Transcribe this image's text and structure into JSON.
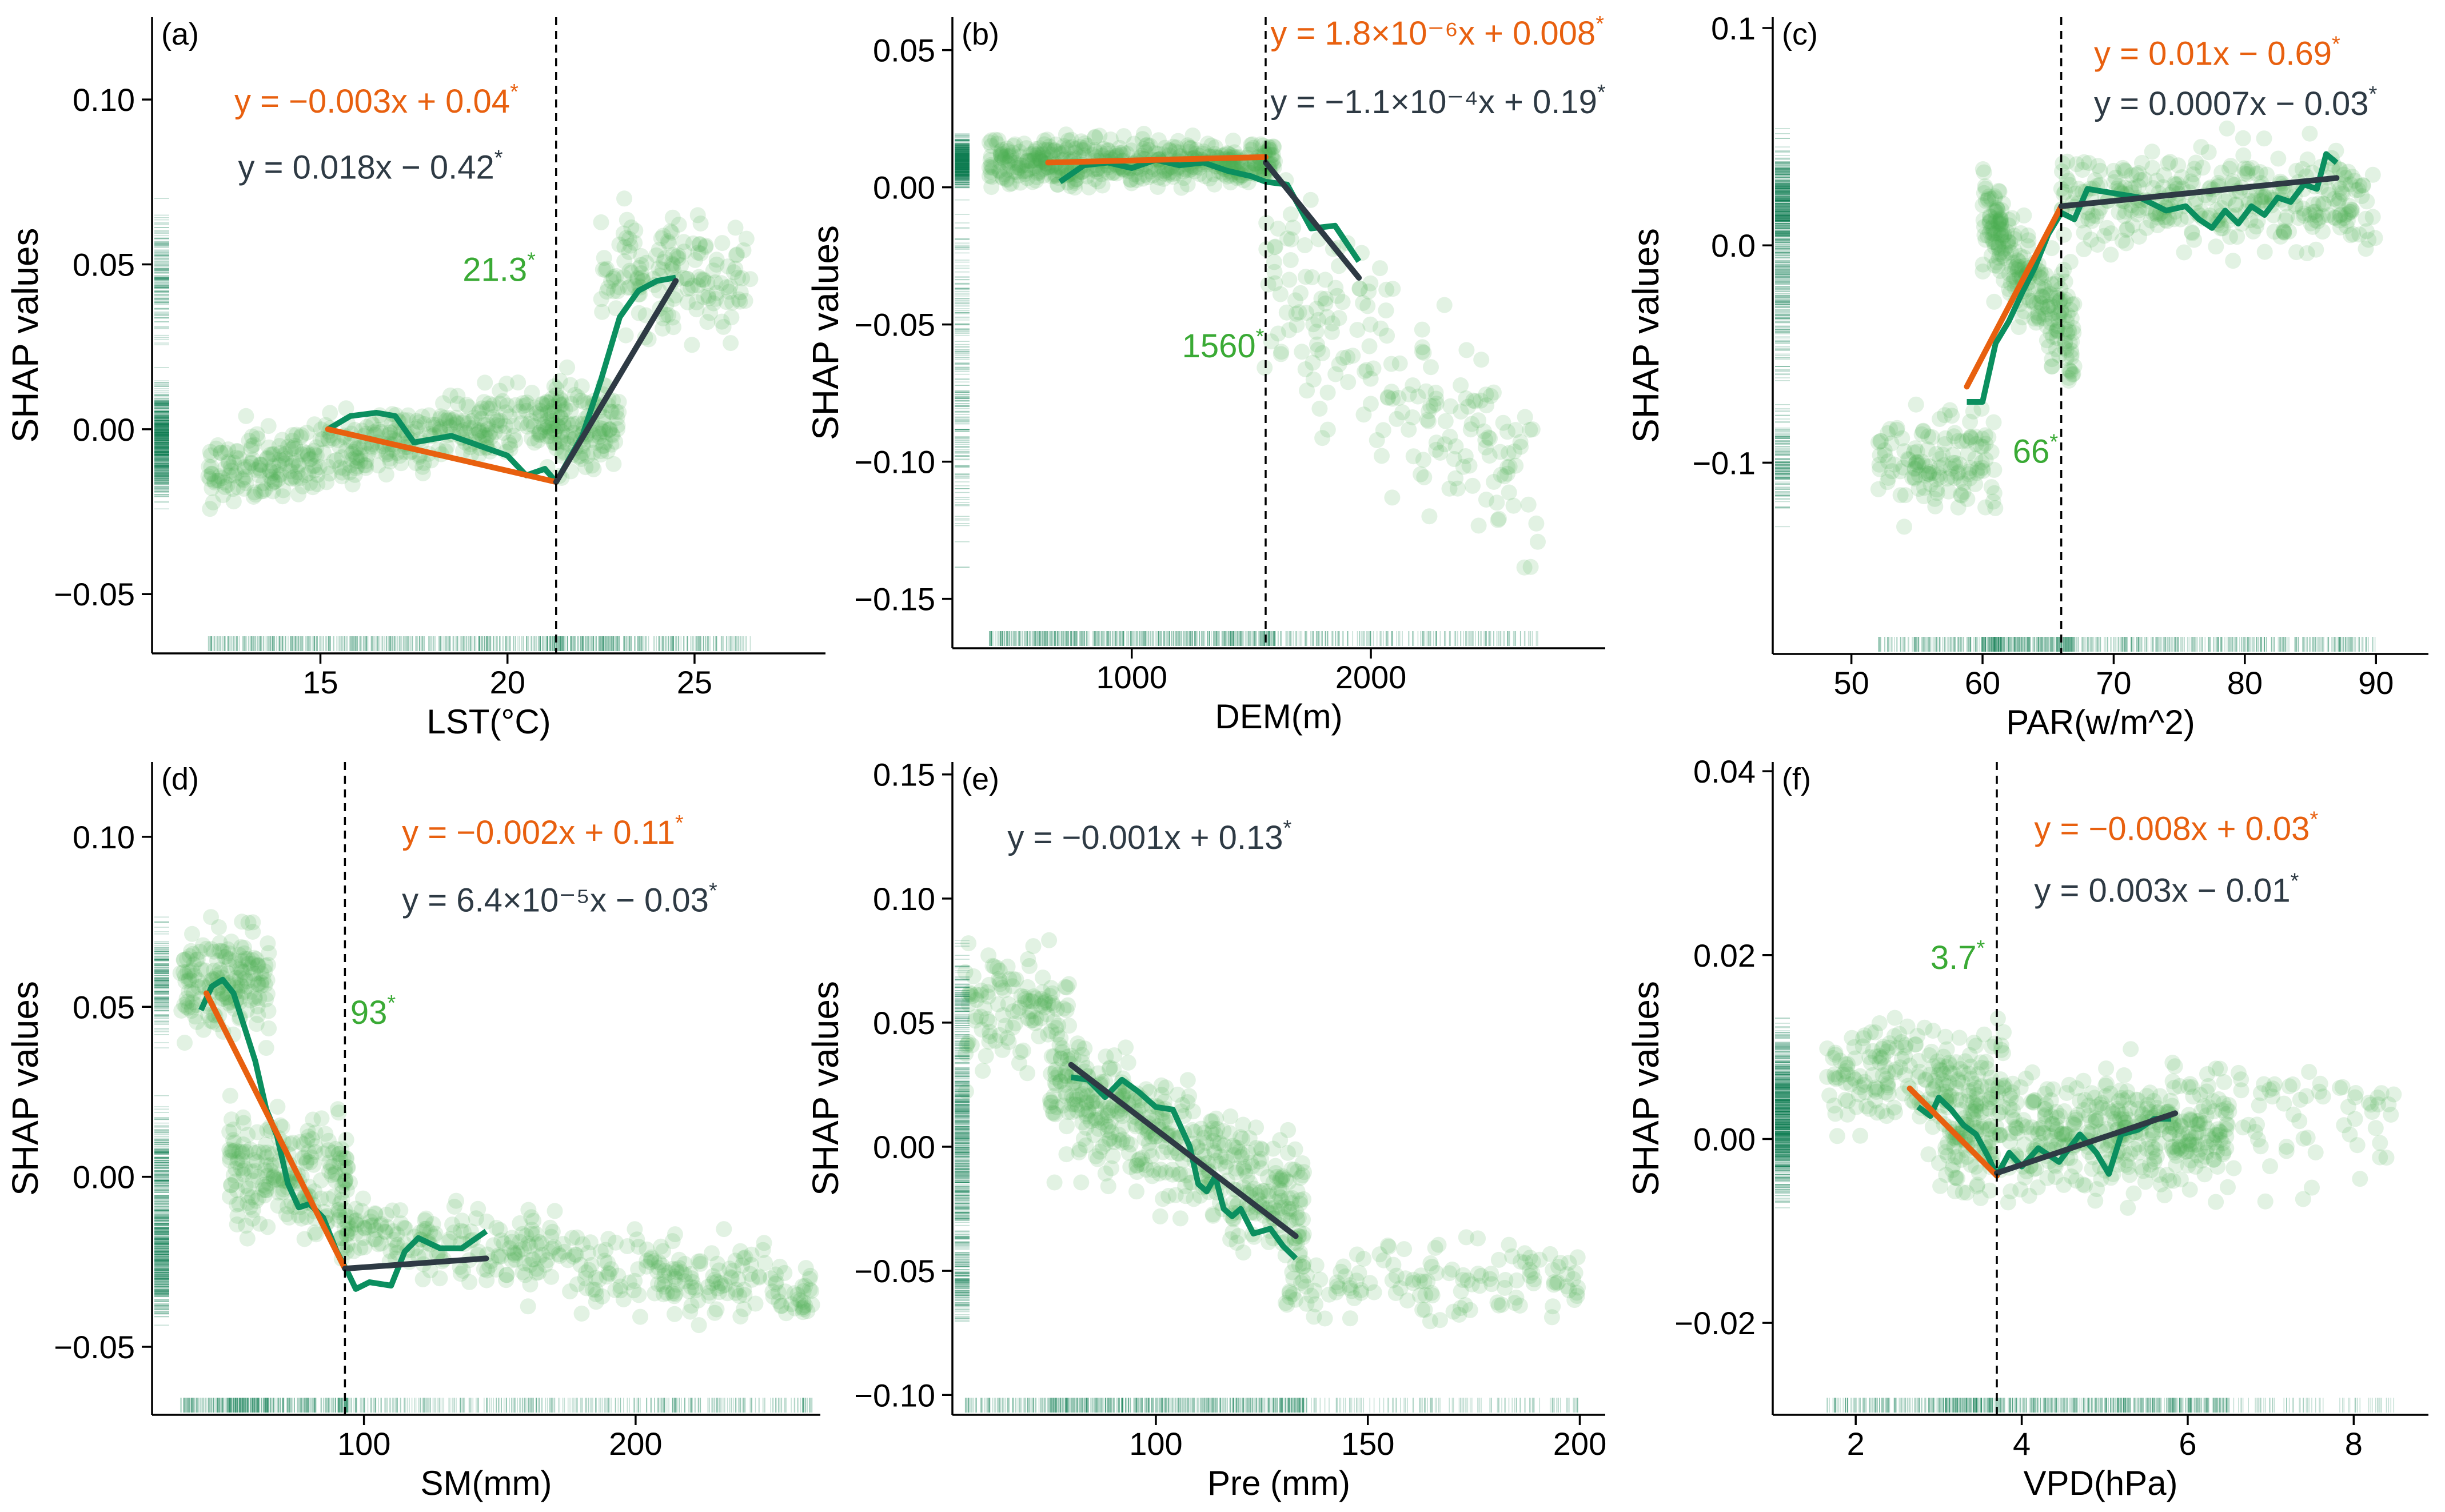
{
  "figure": {
    "background": "#ffffff",
    "colors": {
      "points": "#4caf50",
      "loess": "#0b8f5f",
      "fit_left": "#e8600f",
      "fit_right": "#2e3a44",
      "threshold_text": "#3aaa35",
      "rug": "#0b7a50",
      "axis": "#000000"
    }
  },
  "chart_data": [
    {
      "panel": "(a)",
      "type": "scatter",
      "xlabel": "LST(°C)",
      "ylabel": "SHAP values",
      "xlim": [
        10.5,
        28.5
      ],
      "ylim": [
        -0.068,
        0.125
      ],
      "xticks": [
        15,
        20,
        25
      ],
      "xtick_labels": [
        "15",
        "20",
        "25"
      ],
      "yticks": [
        -0.05,
        0,
        0.05,
        0.1
      ],
      "ytick_labels": [
        "−0.05",
        "0.00",
        "0.05",
        "0.10"
      ],
      "threshold": 21.3,
      "threshold_label": "21.3",
      "threshold_label_pos": [
        18.8,
        0.045
      ],
      "eq_left": "y = −0.003x + 0.04",
      "eq_left_pos": [
        12.7,
        0.096
      ],
      "eq_right": "y = 0.018x − 0.42",
      "eq_right_pos": [
        12.8,
        0.076
      ],
      "fit_left": [
        [
          15.2,
          0.0
        ],
        [
          21.3,
          -0.016
        ]
      ],
      "fit_right": [
        [
          21.3,
          -0.016
        ],
        [
          24.5,
          0.045
        ]
      ],
      "loess": [
        [
          15.2,
          0.0
        ],
        [
          15.8,
          0.004
        ],
        [
          16.5,
          0.005
        ],
        [
          17.0,
          0.004
        ],
        [
          17.5,
          -0.004
        ],
        [
          18.0,
          -0.003
        ],
        [
          18.5,
          -0.002
        ],
        [
          19.0,
          -0.004
        ],
        [
          19.5,
          -0.006
        ],
        [
          20.0,
          -0.008
        ],
        [
          20.5,
          -0.014
        ],
        [
          21.0,
          -0.012
        ],
        [
          21.3,
          -0.016
        ],
        [
          22.0,
          -0.002
        ],
        [
          22.5,
          0.015
        ],
        [
          23.0,
          0.034
        ],
        [
          23.5,
          0.042
        ],
        [
          24.0,
          0.045
        ],
        [
          24.5,
          0.046
        ]
      ],
      "cloud": [
        {
          "x0": 12.0,
          "x1": 21.5,
          "y0": -0.028,
          "y1": 0.02,
          "n": 460,
          "skew": -0.5
        },
        {
          "x0": 21.0,
          "x1": 23.0,
          "y0": -0.03,
          "y1": 0.03,
          "n": 120,
          "skew": 0
        },
        {
          "x0": 22.5,
          "x1": 26.5,
          "y0": 0.005,
          "y1": 0.09,
          "n": 160,
          "skew": 0
        }
      ]
    },
    {
      "panel": "(b)",
      "type": "scatter",
      "xlabel": "DEM(m)",
      "ylabel": "SHAP values",
      "xlim": [
        250,
        2980
      ],
      "ylim": [
        -0.168,
        0.062
      ],
      "xticks": [
        1000,
        2000
      ],
      "xtick_labels": [
        "1000",
        "2000"
      ],
      "yticks": [
        -0.15,
        -0.1,
        -0.05,
        0,
        0.05
      ],
      "ytick_labels": [
        "−0.15",
        "−0.10",
        "−0.05",
        "0.00",
        "0.05"
      ],
      "threshold": 1560,
      "threshold_label": "1560",
      "threshold_label_pos": [
        1210,
        -0.062
      ],
      "eq_left": "y = 1.8×10⁻⁶x + 0.008",
      "eq_left_pos": [
        1580,
        0.052
      ],
      "eq_right": "y = −1.1×10⁻⁴x + 0.19",
      "eq_right_pos": [
        1580,
        0.027
      ],
      "fit_left": [
        [
          650,
          0.009
        ],
        [
          1560,
          0.011
        ]
      ],
      "fit_right": [
        [
          1560,
          0.009
        ],
        [
          1950,
          -0.033
        ]
      ],
      "loess": [
        [
          700,
          0.002
        ],
        [
          800,
          0.008
        ],
        [
          900,
          0.009
        ],
        [
          1000,
          0.007
        ],
        [
          1100,
          0.01
        ],
        [
          1200,
          0.008
        ],
        [
          1300,
          0.009
        ],
        [
          1400,
          0.006
        ],
        [
          1500,
          0.004
        ],
        [
          1560,
          0.002
        ],
        [
          1650,
          0.001
        ],
        [
          1750,
          -0.015
        ],
        [
          1850,
          -0.014
        ],
        [
          1950,
          -0.027
        ]
      ],
      "cloud": [
        {
          "x0": 400,
          "x1": 1600,
          "y0": -0.01,
          "y1": 0.028,
          "n": 520,
          "skew": 0
        },
        {
          "x0": 1550,
          "x1": 2700,
          "y0": -0.15,
          "y1": 0.01,
          "n": 200,
          "skew": 0.6
        }
      ]
    },
    {
      "panel": "(c)",
      "type": "scatter",
      "xlabel": "PAR(w/m^2)",
      "ylabel": "SHAP values",
      "xlim": [
        44,
        94
      ],
      "ylim": [
        -0.188,
        0.105
      ],
      "xticks": [
        50,
        60,
        70,
        80,
        90
      ],
      "xtick_labels": [
        "50",
        "60",
        "70",
        "80",
        "90"
      ],
      "yticks": [
        -0.1,
        0,
        0.1
      ],
      "ytick_labels": [
        "−0.1",
        "0.0",
        "0.1"
      ],
      "threshold": 66,
      "threshold_label": "66",
      "threshold_label_pos": [
        62.3,
        -0.1
      ],
      "eq_left": "y = 0.01x − 0.69",
      "eq_left_pos": [
        68.5,
        0.083
      ],
      "eq_right": "y = 0.0007x − 0.03",
      "eq_right_pos": [
        68.5,
        0.06
      ],
      "fit_left": [
        [
          58.8,
          -0.065
        ],
        [
          66,
          0.018
        ]
      ],
      "fit_right": [
        [
          66,
          0.018
        ],
        [
          87,
          0.031
        ]
      ],
      "loess": [
        [
          58.8,
          -0.072
        ],
        [
          60.0,
          -0.072
        ],
        [
          61.0,
          -0.045
        ],
        [
          62.0,
          -0.035
        ],
        [
          63.0,
          -0.022
        ],
        [
          64.0,
          -0.01
        ],
        [
          65.0,
          0.005
        ],
        [
          66.0,
          0.015
        ],
        [
          67.0,
          0.012
        ],
        [
          68.0,
          0.026
        ],
        [
          70.0,
          0.024
        ],
        [
          72.0,
          0.022
        ],
        [
          74.0,
          0.016
        ],
        [
          75.5,
          0.018
        ],
        [
          76.5,
          0.012
        ],
        [
          77.5,
          0.008
        ],
        [
          78.5,
          0.016
        ],
        [
          79.5,
          0.01
        ],
        [
          80.5,
          0.018
        ],
        [
          81.5,
          0.014
        ],
        [
          82.5,
          0.022
        ],
        [
          83.5,
          0.02
        ],
        [
          84.5,
          0.028
        ],
        [
          85.5,
          0.026
        ],
        [
          86.2,
          0.042
        ],
        [
          87.0,
          0.038
        ]
      ],
      "cloud": [
        {
          "x0": 52.0,
          "x1": 61.0,
          "y0": -0.15,
          "y1": -0.05,
          "n": 140,
          "skew": 0
        },
        {
          "x0": 60.0,
          "x1": 67.0,
          "y0": -0.07,
          "y1": 0.04,
          "n": 260,
          "skew": 0.7
        },
        {
          "x0": 66.0,
          "x1": 90.0,
          "y0": -0.03,
          "y1": 0.07,
          "n": 360,
          "skew": 0
        }
      ]
    },
    {
      "panel": "(d)",
      "type": "scatter",
      "xlabel": "SM(mm)",
      "ylabel": "SHAP values",
      "xlim": [
        22,
        268
      ],
      "ylim": [
        -0.07,
        0.122
      ],
      "xticks": [
        100,
        200
      ],
      "xtick_labels": [
        "100",
        "200"
      ],
      "yticks": [
        -0.05,
        0,
        0.05,
        0.1
      ],
      "ytick_labels": [
        "−0.05",
        "0.00",
        "0.05",
        "0.10"
      ],
      "threshold": 93,
      "threshold_label": "93",
      "threshold_label_pos": [
        95,
        0.045
      ],
      "eq_left": "y = −0.002x + 0.11",
      "eq_left_pos": [
        114,
        0.098
      ],
      "eq_right": "y = 6.4×10⁻⁵x − 0.03",
      "eq_right_pos": [
        114,
        0.078
      ],
      "fit_left": [
        [
          42,
          0.054
        ],
        [
          93,
          -0.027
        ]
      ],
      "fit_right": [
        [
          93,
          -0.027
        ],
        [
          145,
          -0.024
        ]
      ],
      "loess": [
        [
          40,
          0.049
        ],
        [
          44,
          0.056
        ],
        [
          48,
          0.058
        ],
        [
          52,
          0.054
        ],
        [
          56,
          0.044
        ],
        [
          60,
          0.034
        ],
        [
          64,
          0.02
        ],
        [
          68,
          0.012
        ],
        [
          72,
          -0.002
        ],
        [
          76,
          -0.009
        ],
        [
          80,
          -0.008
        ],
        [
          85,
          -0.012
        ],
        [
          90,
          -0.022
        ],
        [
          94,
          -0.028
        ],
        [
          97,
          -0.033
        ],
        [
          102,
          -0.031
        ],
        [
          110,
          -0.032
        ],
        [
          115,
          -0.022
        ],
        [
          120,
          -0.018
        ],
        [
          128,
          -0.021
        ],
        [
          136,
          -0.021
        ],
        [
          145,
          -0.016
        ]
      ],
      "cloud": [
        {
          "x0": 32,
          "x1": 65,
          "y0": 0.02,
          "y1": 0.095,
          "n": 180,
          "skew": 0
        },
        {
          "x0": 50,
          "x1": 95,
          "y0": -0.04,
          "y1": 0.04,
          "n": 220,
          "skew": 0
        },
        {
          "x0": 90,
          "x1": 265,
          "y0": -0.05,
          "y1": 0.0,
          "n": 380,
          "skew": 0.5
        }
      ]
    },
    {
      "panel": "(e)",
      "type": "scatter",
      "xlabel": "Pre (mm)",
      "ylabel": "SHAP values",
      "xlim": [
        52,
        206
      ],
      "ylim": [
        -0.108,
        0.155
      ],
      "xticks": [
        100,
        150,
        200
      ],
      "xtick_labels": [
        "100",
        "150",
        "200"
      ],
      "yticks": [
        -0.1,
        -0.05,
        0,
        0.05,
        0.1,
        0.15
      ],
      "ytick_labels": [
        "−0.10",
        "−0.05",
        "0.00",
        "0.05",
        "0.10",
        "0.15"
      ],
      "threshold": null,
      "threshold_label": null,
      "eq_right": "y = −0.001x + 0.13",
      "eq_right_pos": [
        65,
        0.12
      ],
      "fit_right": [
        [
          80,
          0.033
        ],
        [
          133,
          -0.036
        ]
      ],
      "loess": [
        [
          80,
          0.028
        ],
        [
          84,
          0.027
        ],
        [
          88,
          0.02
        ],
        [
          92,
          0.027
        ],
        [
          96,
          0.022
        ],
        [
          100,
          0.016
        ],
        [
          104,
          0.015
        ],
        [
          108,
          0.0
        ],
        [
          110,
          -0.015
        ],
        [
          112,
          -0.018
        ],
        [
          114,
          -0.012
        ],
        [
          116,
          -0.025
        ],
        [
          118,
          -0.028
        ],
        [
          120,
          -0.025
        ],
        [
          123,
          -0.035
        ],
        [
          127,
          -0.033
        ],
        [
          130,
          -0.04
        ],
        [
          133,
          -0.045
        ]
      ],
      "cloud": [
        {
          "x0": 55,
          "x1": 80,
          "y0": 0.0,
          "y1": 0.11,
          "n": 120,
          "skew": 0
        },
        {
          "x0": 75,
          "x1": 135,
          "y0": -0.06,
          "y1": 0.06,
          "n": 480,
          "skew": 0.6
        },
        {
          "x0": 130,
          "x1": 200,
          "y0": -0.09,
          "y1": -0.02,
          "n": 140,
          "skew": 0
        }
      ]
    },
    {
      "panel": "(f)",
      "type": "scatter",
      "xlabel": "VPD(hPa)",
      "ylabel": "SHAP values",
      "xlim": [
        1.0,
        8.9
      ],
      "ylim": [
        -0.03,
        0.041
      ],
      "xticks": [
        2,
        4,
        6,
        8
      ],
      "xtick_labels": [
        "2",
        "4",
        "6",
        "8"
      ],
      "yticks": [
        -0.02,
        0,
        0.02,
        0.04
      ],
      "ytick_labels": [
        "−0.02",
        "0.00",
        "0.02",
        "0.04"
      ],
      "threshold": 3.7,
      "threshold_label": "3.7",
      "threshold_label_pos": [
        2.9,
        0.0185
      ],
      "eq_left": "y = −0.008x + 0.03",
      "eq_left_pos": [
        4.15,
        0.0325
      ],
      "eq_right": "y = 0.003x − 0.01",
      "eq_right_pos": [
        4.15,
        0.0258
      ],
      "fit_left": [
        [
          2.65,
          0.0055
        ],
        [
          3.7,
          -0.004
        ]
      ],
      "fit_right": [
        [
          3.7,
          -0.0037
        ],
        [
          5.85,
          0.0028
        ]
      ],
      "loess": [
        [
          2.75,
          0.0035
        ],
        [
          2.9,
          0.0025
        ],
        [
          3.0,
          0.0045
        ],
        [
          3.15,
          0.0032
        ],
        [
          3.3,
          0.0015
        ],
        [
          3.45,
          0.0005
        ],
        [
          3.6,
          -0.002
        ],
        [
          3.7,
          -0.004
        ],
        [
          3.85,
          -0.0015
        ],
        [
          4.0,
          -0.003
        ],
        [
          4.2,
          -0.001
        ],
        [
          4.45,
          -0.0025
        ],
        [
          4.7,
          0.0005
        ],
        [
          4.9,
          -0.0015
        ],
        [
          5.05,
          -0.0038
        ],
        [
          5.2,
          0.0005
        ],
        [
          5.4,
          0.001
        ],
        [
          5.6,
          0.0022
        ],
        [
          5.8,
          0.0022
        ]
      ],
      "cloud": [
        {
          "x0": 1.6,
          "x1": 3.8,
          "y0": -0.006,
          "y1": 0.02,
          "n": 200,
          "skew": 0
        },
        {
          "x0": 3.0,
          "x1": 6.5,
          "y0": -0.013,
          "y1": 0.014,
          "n": 480,
          "skew": 0
        },
        {
          "x0": 5.0,
          "x1": 8.5,
          "y0": -0.015,
          "y1": 0.02,
          "n": 100,
          "skew": 0
        }
      ]
    }
  ]
}
